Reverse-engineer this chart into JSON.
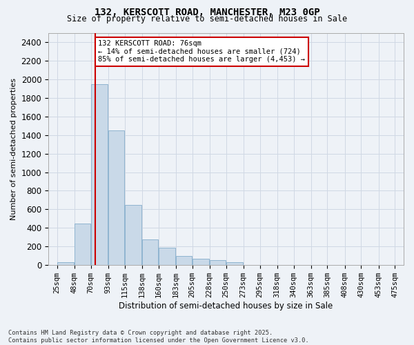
{
  "title": "132, KERSCOTT ROAD, MANCHESTER, M23 0GP",
  "subtitle": "Size of property relative to semi-detached houses in Sale",
  "xlabel": "Distribution of semi-detached houses by size in Sale",
  "ylabel": "Number of semi-detached properties",
  "footnote": "Contains HM Land Registry data © Crown copyright and database right 2025.\nContains public sector information licensed under the Open Government Licence v3.0.",
  "annotation_title": "132 KERSCOTT ROAD: 76sqm",
  "annotation_line1": "← 14% of semi-detached houses are smaller (724)",
  "annotation_line2": "85% of semi-detached houses are larger (4,453) →",
  "property_size": 76,
  "bar_color": "#c9d9e8",
  "bar_edge_color": "#8fb4d0",
  "vline_color": "#cc0000",
  "annotation_box_color": "#cc0000",
  "grid_color": "#d0d8e4",
  "background_color": "#eef2f7",
  "bins": [
    25,
    48,
    70,
    93,
    115,
    138,
    160,
    183,
    205,
    228,
    250,
    273,
    295,
    318,
    340,
    363,
    385,
    408,
    430,
    453,
    475
  ],
  "bin_labels": [
    "25sqm",
    "48sqm",
    "70sqm",
    "93sqm",
    "115sqm",
    "138sqm",
    "160sqm",
    "183sqm",
    "205sqm",
    "228sqm",
    "250sqm",
    "273sqm",
    "295sqm",
    "318sqm",
    "340sqm",
    "363sqm",
    "385sqm",
    "408sqm",
    "430sqm",
    "453sqm",
    "475sqm"
  ],
  "values": [
    30,
    450,
    1950,
    1450,
    650,
    280,
    190,
    100,
    70,
    50,
    30,
    5,
    5,
    5,
    5,
    0,
    0,
    0,
    0,
    0
  ],
  "ylim": [
    0,
    2500
  ],
  "yticks": [
    0,
    200,
    400,
    600,
    800,
    1000,
    1200,
    1400,
    1600,
    1800,
    2000,
    2200,
    2400
  ]
}
